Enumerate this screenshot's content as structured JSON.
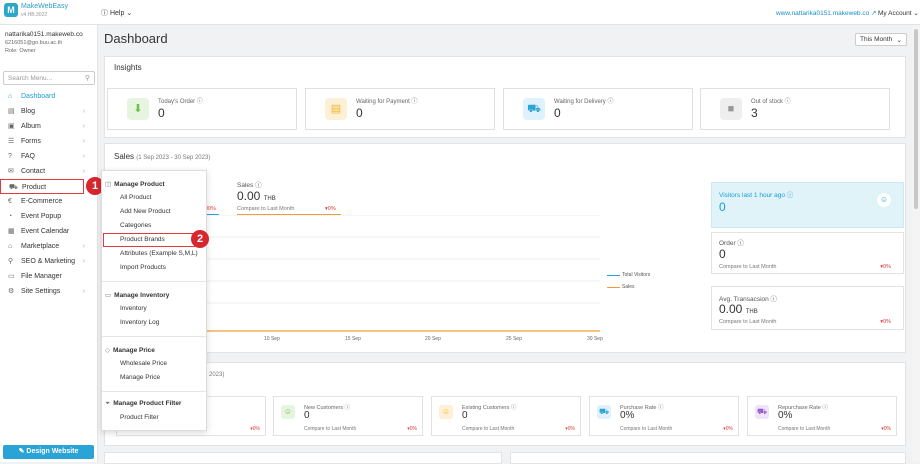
{
  "app": {
    "logo_letter": "M",
    "name": "MakeWebEasy",
    "version": "v4.HB.3022",
    "help": "Help",
    "site_link": "www.nattarika0151.makeweb.co",
    "account": "My Account"
  },
  "user": {
    "name": "nattarika0151.makeweb.co",
    "email": "6216051@go.buu.ac.th",
    "role": "Role: Owner"
  },
  "search": {
    "placeholder": "Search Menu..."
  },
  "sidebar": {
    "items": [
      {
        "label": "Dashboard",
        "icon": "home-icon"
      },
      {
        "label": "Blog",
        "icon": "blog-icon"
      },
      {
        "label": "Album",
        "icon": "album-icon"
      },
      {
        "label": "Forms",
        "icon": "forms-icon"
      },
      {
        "label": "FAQ",
        "icon": "faq-icon"
      },
      {
        "label": "Contact",
        "icon": "contact-icon"
      },
      {
        "label": "Product",
        "icon": "cart-icon"
      },
      {
        "label": "E-Commerce",
        "icon": "ecommerce-icon"
      },
      {
        "label": "Event Popup",
        "icon": "popup-icon"
      },
      {
        "label": "Event Calendar",
        "icon": "calendar-icon"
      },
      {
        "label": "Marketplace",
        "icon": "market-icon"
      },
      {
        "label": "SEO & Marketing",
        "icon": "seo-icon"
      },
      {
        "label": "File Manager",
        "icon": "folder-icon"
      },
      {
        "label": "Site Settings",
        "icon": "gear-icon"
      }
    ],
    "design_button": "Design Website"
  },
  "dashboard": {
    "title": "Dashboard",
    "period": "This Month"
  },
  "insights": {
    "title": "Insights",
    "cards": [
      {
        "label": "Today's Order",
        "value": "0",
        "color": "#6cbf4e"
      },
      {
        "label": "Waiting for Payment",
        "value": "0",
        "color": "#f5b422"
      },
      {
        "label": "Waiting for Delivery",
        "value": "0",
        "color": "#2aa3d6"
      },
      {
        "label": "Out of stock",
        "value": "3",
        "color": "#999999"
      }
    ]
  },
  "sales": {
    "title": "Sales",
    "range": "(1 Sep 2023 - 30 Sep 2023)",
    "pct_left": "00%",
    "label": "Sales",
    "value": "0.00",
    "unit": "THB",
    "compare": "Compare to Last Month",
    "change": "0%",
    "x_ticks": [
      "10 Sep",
      "15 Sep",
      "20 Sep",
      "25 Sep",
      "30 Sep"
    ],
    "legend": [
      "Total Visitors",
      "Sales"
    ]
  },
  "visitors": {
    "label": "Visitors last 1 hour ago",
    "value": "0"
  },
  "order": {
    "label": "Order",
    "value": "0",
    "compare": "Compare to Last Month",
    "change": "0%"
  },
  "avg": {
    "label": "Avg. Transacsion",
    "value": "0.00",
    "unit": "THB",
    "compare": "Compare to Last Month",
    "change": "0%"
  },
  "customers": {
    "range_fragment": "n 2023)",
    "compare": "Compare to Last Month",
    "first_change": "0%",
    "cards": [
      {
        "label": "New Customers",
        "value": "0",
        "change": "0%",
        "color": "#6cbf4e"
      },
      {
        "label": "Existing Customers",
        "value": "0",
        "change": "0%",
        "color": "#f5b422"
      },
      {
        "label": "Purchase Rate",
        "value": "0%",
        "change": "0%",
        "color": "#2aa3d6"
      },
      {
        "label": "Repurchase Rate",
        "value": "0%",
        "change": "0%",
        "color": "#9b59d0"
      }
    ]
  },
  "dropdown": {
    "sections": [
      {
        "title": "Manage Product",
        "items": [
          "All Product",
          "Add New Product",
          "Categories",
          "Product Brands",
          "Attributes (Example S,M,L)",
          "Import Products"
        ]
      },
      {
        "title": "Manage Inventory",
        "items": [
          "Inventory",
          "Inventory Log"
        ]
      },
      {
        "title": "Manage Price",
        "items": [
          "Wholesale Price",
          "Manage Price"
        ]
      },
      {
        "title": "Manage Product Filter",
        "items": [
          "Product Filter"
        ]
      }
    ]
  },
  "callouts": [
    "1",
    "2"
  ],
  "accent": "#1a9cd8",
  "highlight": "#e0393e"
}
